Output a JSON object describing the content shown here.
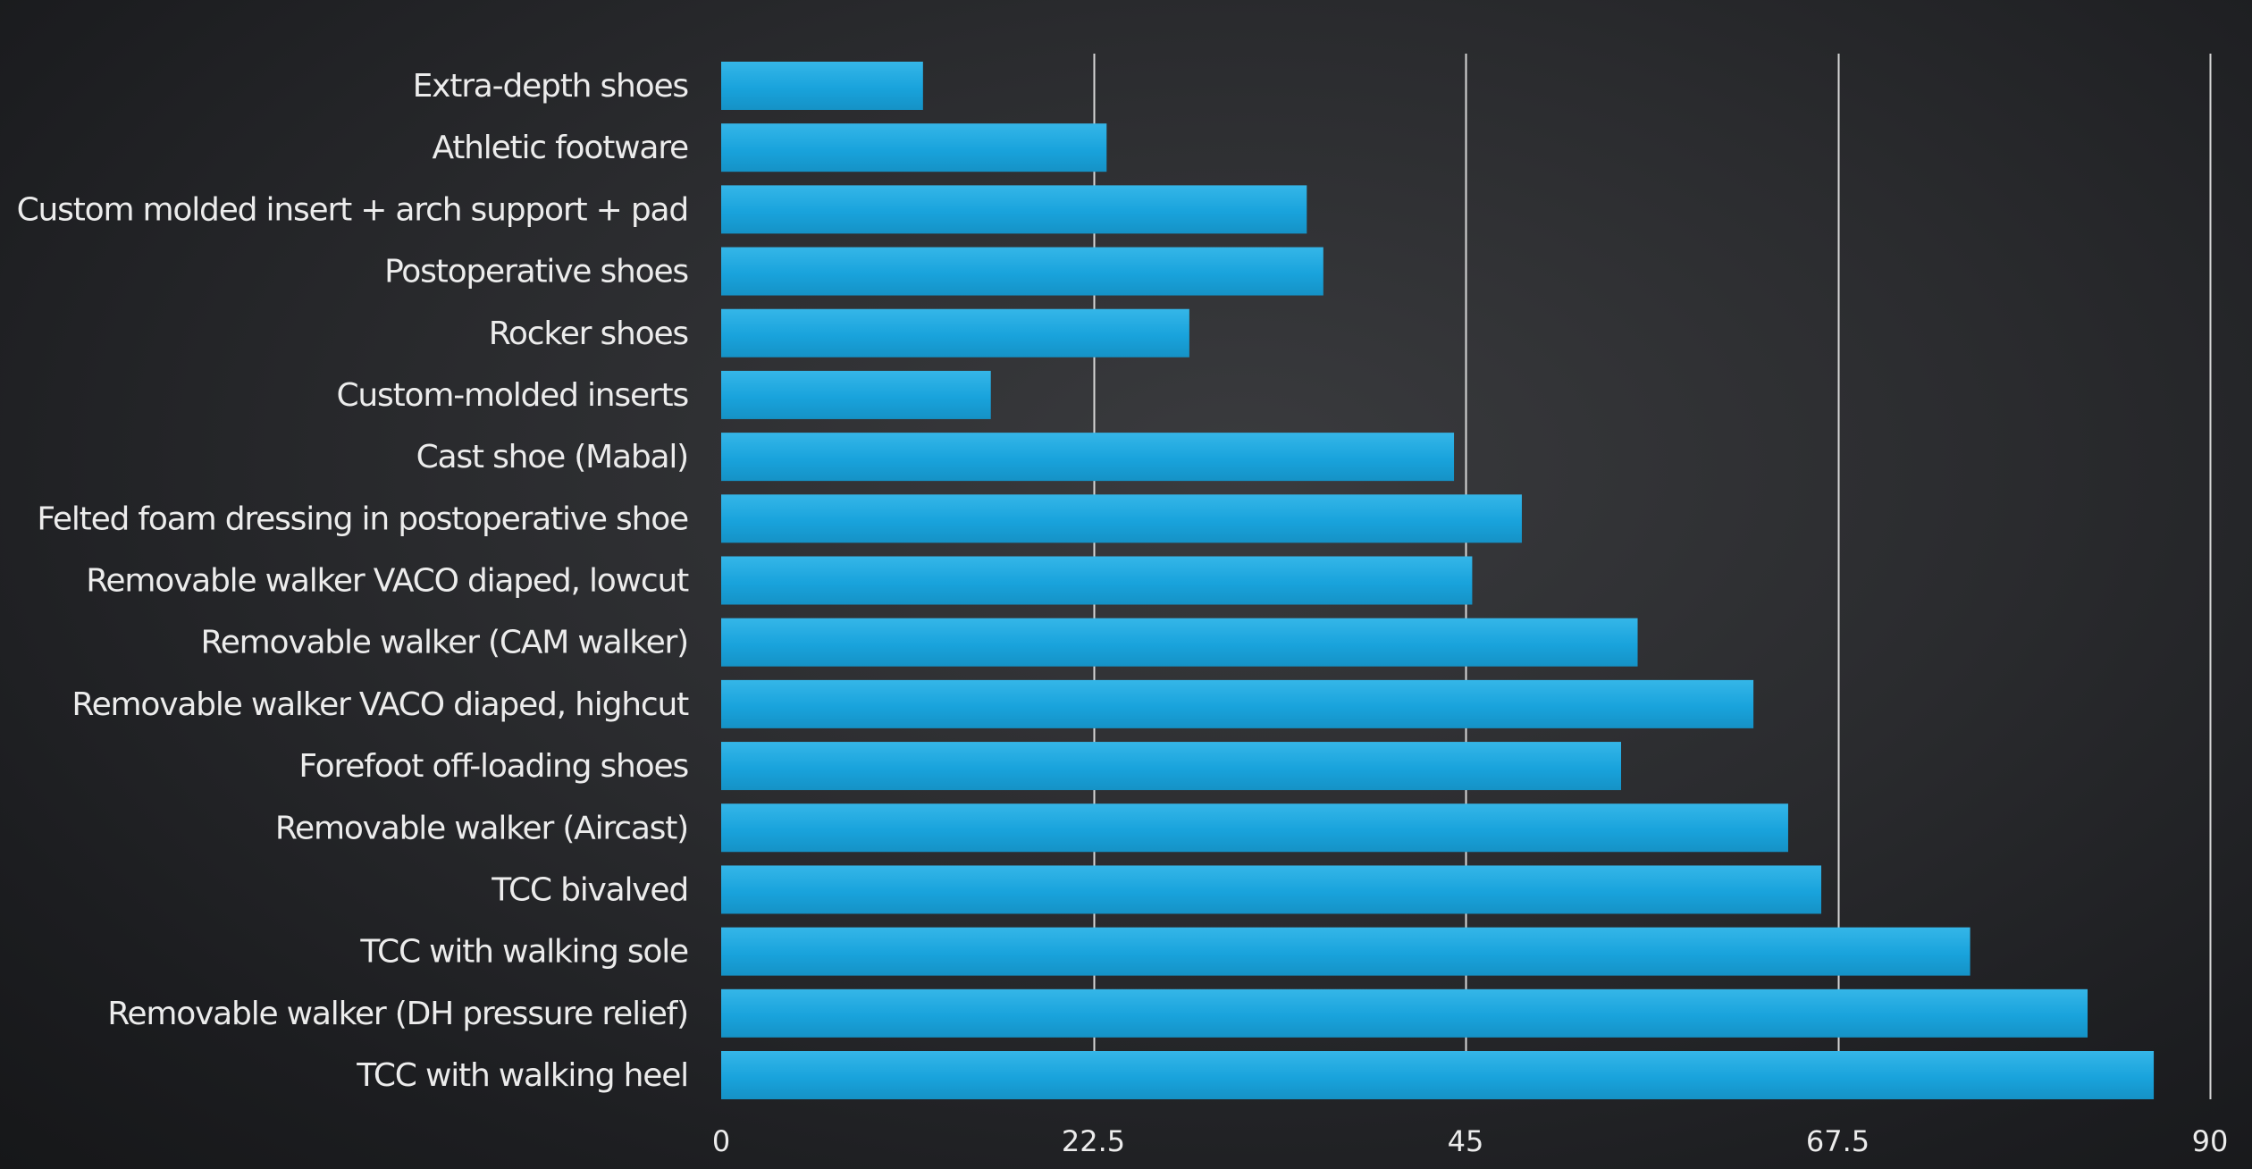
{
  "chart_data": {
    "type": "bar",
    "orientation": "horizontal",
    "title": "",
    "xlabel": "",
    "ylabel": "",
    "categories": [
      "Extra-depth shoes",
      "Athletic footware",
      "Custom molded insert + arch support + pad",
      "Postoperative shoes",
      "Rocker shoes",
      "Custom-molded inserts",
      "Cast shoe (Mabal)",
      "Felted foam dressing in postoperative shoe",
      "Removable walker VACO diaped, lowcut",
      "Removable walker (CAM walker)",
      "Removable walker VACO diaped, highcut",
      "Forefoot off-loading shoes",
      "Removable walker (Aircast)",
      "TCC bivalved",
      "TCC with walking sole",
      "Removable walker (DH pressure relief)",
      "TCC with walking heel"
    ],
    "values": [
      12.2,
      23.3,
      35.4,
      36.4,
      28.3,
      16.3,
      44.3,
      48.4,
      45.4,
      55.4,
      62.4,
      54.4,
      64.5,
      66.5,
      75.5,
      82.6,
      86.6
    ],
    "xlim": [
      0,
      90
    ],
    "xticks": [
      "0",
      "22.5",
      "45",
      "67.5",
      "90"
    ],
    "xtick_values": [
      0,
      22.5,
      45,
      67.5,
      90
    ],
    "grid": "vertical",
    "legend": "none",
    "colors": {
      "bar": "#19a3dc",
      "bar_highlight": "#4cc0ec",
      "grid": "#d8d8d8",
      "text": "#ececec"
    }
  }
}
